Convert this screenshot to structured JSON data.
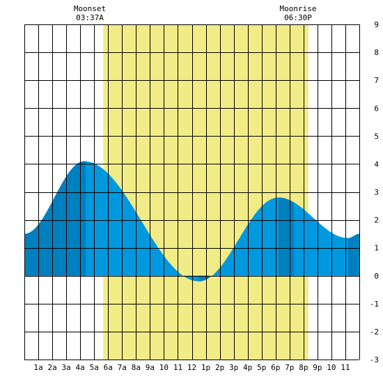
{
  "chart_data": {
    "type": "area",
    "title": "",
    "xlabel": "",
    "ylabel": "",
    "x_range_hours": [
      0,
      24
    ],
    "ylim": [
      -3,
      9
    ],
    "grid": true,
    "x_tick_labels": [
      "1a",
      "2a",
      "3a",
      "4a",
      "5a",
      "6a",
      "7a",
      "8a",
      "9a",
      "10",
      "11",
      "12",
      "1p",
      "2p",
      "3p",
      "4p",
      "5p",
      "6p",
      "7p",
      "8p",
      "9p",
      "10",
      "11"
    ],
    "y_tick_labels": [
      "-3",
      "-2",
      "-1",
      "0",
      "1",
      "2",
      "3",
      "4",
      "5",
      "6",
      "7",
      "8",
      "9"
    ],
    "daylight_hours": [
      5.65,
      20.35
    ],
    "tide_extremes": [
      {
        "hour": 0.0,
        "height": 1.5
      },
      {
        "hour": 4.3,
        "height": 4.1
      },
      {
        "hour": 12.5,
        "height": -0.2
      },
      {
        "hour": 18.2,
        "height": 2.8
      },
      {
        "hour": 23.2,
        "height": 1.35
      },
      {
        "hour": 24.0,
        "height": 1.5
      }
    ],
    "dark_bands_hours": [
      [
        0,
        4.4
      ],
      [
        12.5,
        13.2
      ],
      [
        18.2,
        19.3
      ],
      [
        23.2,
        24
      ]
    ],
    "colors": {
      "daylight": "#f2ec86",
      "tide_light": "#0099e0",
      "tide_dark": "#0080bf",
      "grid": "#000000"
    }
  },
  "moon": {
    "moonset_label": "Moonset",
    "moonset_time": "03:37A",
    "moonrise_label": "Moonrise",
    "moonrise_time": "06:30P"
  }
}
